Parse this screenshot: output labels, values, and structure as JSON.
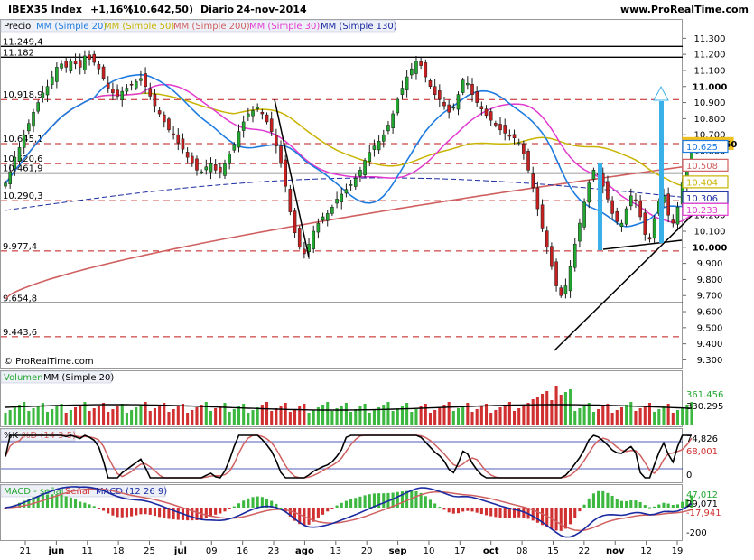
{
  "header": {
    "symbol": "IBEX35 Index",
    "change": "+1,16%",
    "price": "(10.642,50)",
    "period": "Diario",
    "date": "24-nov-2014",
    "site": "www.ProRealTime.com",
    "copyright": "© ProRealTime.com"
  },
  "legend": {
    "precio": "Precio",
    "mm20": "MM (Simple 20)",
    "mm50": "MM (Simple 50)",
    "mm200": "MM (Simple 200)",
    "mm30": "MM (Simple 30)",
    "mm130": "MM (Simple 130)",
    "volumen": "Volumen",
    "volmm": "MM (Simple 20)",
    "k": "%K",
    "d": "%D (14 3 5)",
    "macd_hist": "MACD - señal",
    "macd_signal": "Señal",
    "macd": "MACD (12 26 9)"
  },
  "colors": {
    "mm20": "#1e7be0",
    "mm50": "#c8b400",
    "mm200": "#d06060",
    "mm30": "#e23ad0",
    "mm130": "#1a2aa0",
    "up": "#22a830",
    "down": "#c82020",
    "vol_up": "#3cb840",
    "vol_down": "#d03030"
  },
  "chart_data": [
    {
      "type": "candlestick",
      "panel": "price",
      "y_ticks": [
        "11.300",
        "11.200",
        "11.100",
        "11.000",
        "10.900",
        "10.800",
        "10.700",
        "10.600",
        "10.500",
        "10.400",
        "10.300",
        "10.200",
        "10.100",
        "10.000",
        "9.900",
        "9.800",
        "9.700",
        "9.600",
        "9.500",
        "9.400",
        "9.300"
      ],
      "ylim": [
        9280,
        11330
      ],
      "x_ticks": [
        "21",
        "jun",
        "11",
        "18",
        "25",
        "jul",
        "09",
        "16",
        "23",
        "ago",
        "13",
        "20",
        "sep",
        "10",
        "17",
        "oct",
        "08",
        "15",
        "22",
        "nov",
        "12",
        "19"
      ],
      "levels": [
        {
          "label": "11.249,4",
          "value": 11249.4,
          "style": "solid"
        },
        {
          "label": "11.182",
          "value": 11182,
          "style": "solid"
        },
        {
          "label": "10.918,9",
          "value": 10918.9,
          "style": "dashed"
        },
        {
          "label": "10.645,1",
          "value": 10645.1,
          "style": "dashed"
        },
        {
          "label": "10.520,6",
          "value": 10520.6,
          "style": "dashed"
        },
        {
          "label": "10.461,9",
          "value": 10461.9,
          "style": "solid"
        },
        {
          "label": "10.290,3",
          "value": 10290.3,
          "style": "dashed"
        },
        {
          "label": "9.977,4",
          "value": 9977.4,
          "style": "dashed"
        },
        {
          "label": "9.654,8",
          "value": 9654.8,
          "style": "solid"
        },
        {
          "label": "9.443,6",
          "value": 9443.6,
          "style": "dashed"
        }
      ],
      "last_values": [
        {
          "label": "10.642,50",
          "value": 10642.5,
          "color": "#f0c020"
        },
        {
          "label": "10.625",
          "value": 10625,
          "color": "#1e7be0"
        },
        {
          "label": "10.508",
          "value": 10508,
          "color": "#d06060"
        },
        {
          "label": "10.404",
          "value": 10404,
          "color": "#c8b400"
        },
        {
          "label": "10.306",
          "value": 10306,
          "color": "#1a2aa0"
        },
        {
          "label": "10.233",
          "value": 10233,
          "color": "#e23ad0"
        }
      ],
      "closes": [
        10400,
        10470,
        10560,
        10620,
        10700,
        10770,
        10840,
        10900,
        10960,
        11000,
        11060,
        11120,
        11140,
        11120,
        11160,
        11140,
        11120,
        11190,
        11170,
        11150,
        11110,
        11050,
        10990,
        10960,
        10940,
        10970,
        10990,
        11010,
        11030,
        11050,
        11000,
        10940,
        10880,
        10830,
        10780,
        10730,
        10700,
        10650,
        10610,
        10560,
        10520,
        10480,
        10470,
        10500,
        10520,
        10480,
        10470,
        10520,
        10580,
        10640,
        10720,
        10780,
        10830,
        10850,
        10870,
        10830,
        10780,
        10720,
        10630,
        10520,
        10380,
        10220,
        10090,
        10000,
        9960,
        10020,
        10100,
        10150,
        10190,
        10210,
        10250,
        10300,
        10330,
        10360,
        10390,
        10430,
        10480,
        10540,
        10590,
        10630,
        10660,
        10700,
        10760,
        10830,
        10920,
        10990,
        11060,
        11110,
        11160,
        11130,
        11060,
        11000,
        10950,
        10920,
        10880,
        10840,
        10870,
        10950,
        11040,
        11020,
        10950,
        10900,
        10860,
        10820,
        10790,
        10760,
        10730,
        10710,
        10690,
        10680,
        10650,
        10580,
        10480,
        10370,
        10240,
        10120,
        10000,
        9880,
        9760,
        9700,
        9760,
        9880,
        10020,
        10150,
        10280,
        10400,
        10480,
        10450,
        10380,
        10300,
        10210,
        10160,
        10150,
        10240,
        10320,
        10290,
        10190,
        10080,
        10050,
        10180,
        10290,
        10320,
        10200,
        10150,
        10250,
        10400,
        10520,
        10642.5
      ],
      "volume_ticks": [
        "361.456",
        "330.295"
      ],
      "stochastic": {
        "k_last": 74.826,
        "d_last": 68.001,
        "labels": [
          "74,826",
          "68,001",
          "0"
        ]
      },
      "macd": {
        "labels": [
          "47,012",
          "29,071",
          "-17,941",
          "-200"
        ]
      }
    }
  ]
}
